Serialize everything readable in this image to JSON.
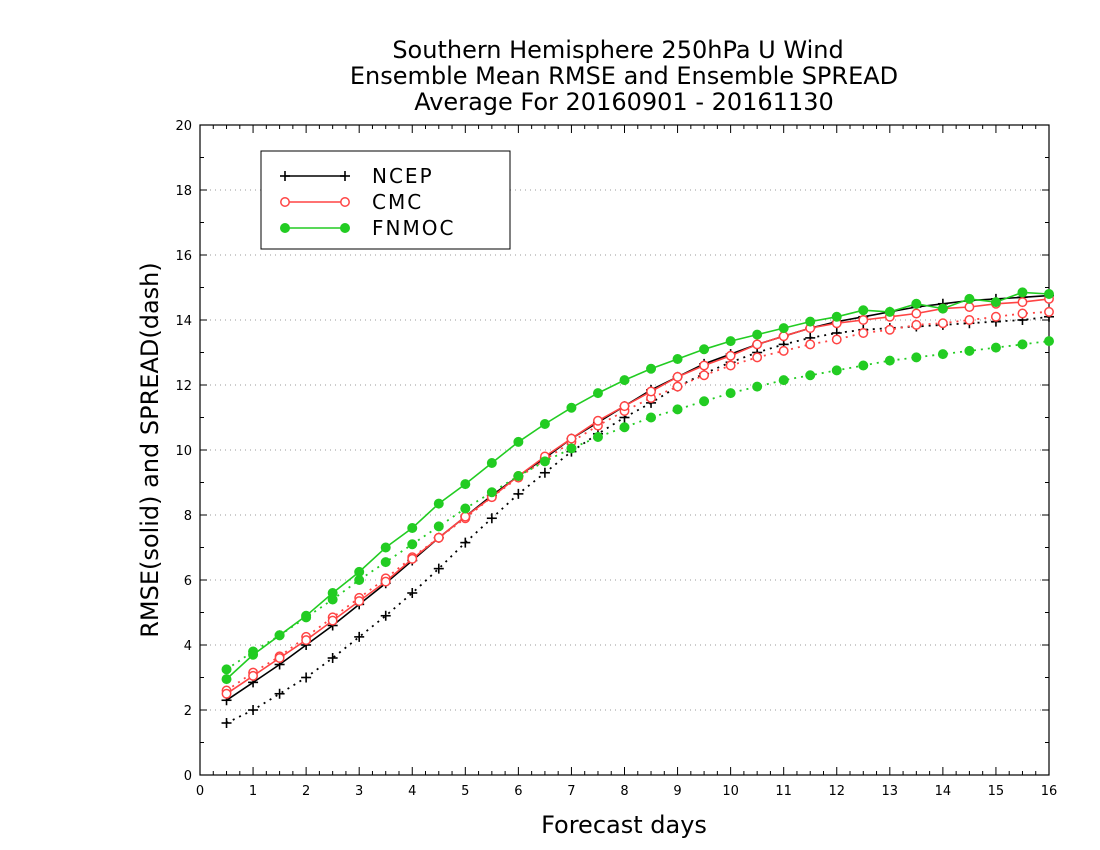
{
  "chart_data": {
    "type": "line",
    "title": [
      "Southern Hemisphere 250hPa U Wind",
      "Ensemble Mean RMSE and Ensemble SPREAD",
      "Average For 20160901 - 20161130"
    ],
    "xlabel": "Forecast days",
    "ylabel": "RMSE(solid) and SPREAD(dash)",
    "xlim": [
      0,
      16
    ],
    "ylim": [
      0,
      20
    ],
    "xticks": [
      "0",
      "1",
      "2",
      "3",
      "4",
      "5",
      "6",
      "7",
      "8",
      "9",
      "10",
      "11",
      "12",
      "13",
      "14",
      "15",
      "16"
    ],
    "yticks": [
      "0",
      "2",
      "4",
      "6",
      "8",
      "10",
      "12",
      "14",
      "16",
      "18",
      "20"
    ],
    "grid": true,
    "legend_position": "top-left",
    "x": [
      0.5,
      1,
      1.5,
      2,
      2.5,
      3,
      3.5,
      4,
      4.5,
      5,
      5.5,
      6,
      6.5,
      7,
      7.5,
      8,
      8.5,
      9,
      9.5,
      10,
      10.5,
      11,
      11.5,
      12,
      12.5,
      13,
      13.5,
      14,
      14.5,
      15,
      15.5,
      16
    ],
    "series": [
      {
        "name": "NCEP",
        "color": "#000000",
        "marker": "plus",
        "rmse": [
          2.3,
          2.85,
          3.4,
          4.0,
          4.6,
          5.25,
          5.9,
          6.6,
          7.3,
          7.95,
          8.6,
          9.2,
          9.75,
          10.35,
          10.85,
          11.35,
          11.85,
          12.25,
          12.65,
          12.95,
          13.25,
          13.5,
          13.75,
          13.95,
          14.1,
          14.25,
          14.4,
          14.5,
          14.6,
          14.65,
          14.7,
          14.75
        ],
        "spread": [
          1.6,
          2.0,
          2.5,
          3.0,
          3.6,
          4.25,
          4.9,
          5.6,
          6.35,
          7.15,
          7.9,
          8.65,
          9.3,
          9.95,
          10.5,
          11.0,
          11.45,
          11.95,
          12.35,
          12.7,
          13.0,
          13.25,
          13.45,
          13.6,
          13.7,
          13.75,
          13.8,
          13.85,
          13.9,
          13.95,
          14.0,
          14.1
        ]
      },
      {
        "name": "CMC",
        "color": "#ff4444",
        "marker": "open-circle",
        "rmse": [
          2.5,
          3.05,
          3.6,
          4.15,
          4.75,
          5.35,
          5.95,
          6.65,
          7.3,
          7.95,
          8.55,
          9.2,
          9.8,
          10.35,
          10.9,
          11.35,
          11.8,
          12.25,
          12.6,
          12.9,
          13.25,
          13.5,
          13.75,
          13.9,
          14.0,
          14.1,
          14.2,
          14.35,
          14.4,
          14.5,
          14.55,
          14.65
        ],
        "spread": [
          2.6,
          3.15,
          3.65,
          4.25,
          4.85,
          5.45,
          6.05,
          6.7,
          7.3,
          7.9,
          8.55,
          9.15,
          9.7,
          10.25,
          10.75,
          11.2,
          11.6,
          11.95,
          12.3,
          12.6,
          12.85,
          13.05,
          13.25,
          13.4,
          13.6,
          13.7,
          13.85,
          13.9,
          14.0,
          14.1,
          14.2,
          14.25
        ]
      },
      {
        "name": "FNMOC",
        "color": "#22cc22",
        "marker": "filled-circle",
        "rmse": [
          2.95,
          3.7,
          4.3,
          4.9,
          5.6,
          6.25,
          7.0,
          7.6,
          8.35,
          8.95,
          9.6,
          10.25,
          10.8,
          11.3,
          11.75,
          12.15,
          12.5,
          12.8,
          13.1,
          13.35,
          13.55,
          13.75,
          13.95,
          14.1,
          14.3,
          14.25,
          14.5,
          14.35,
          14.65,
          14.55,
          14.85,
          14.8
        ],
        "spread": [
          3.25,
          3.8,
          4.3,
          4.85,
          5.4,
          6.0,
          6.55,
          7.1,
          7.65,
          8.2,
          8.7,
          9.2,
          9.65,
          10.05,
          10.4,
          10.7,
          11.0,
          11.25,
          11.5,
          11.75,
          11.95,
          12.15,
          12.3,
          12.45,
          12.6,
          12.75,
          12.85,
          12.95,
          13.05,
          13.15,
          13.25,
          13.35
        ]
      }
    ]
  }
}
